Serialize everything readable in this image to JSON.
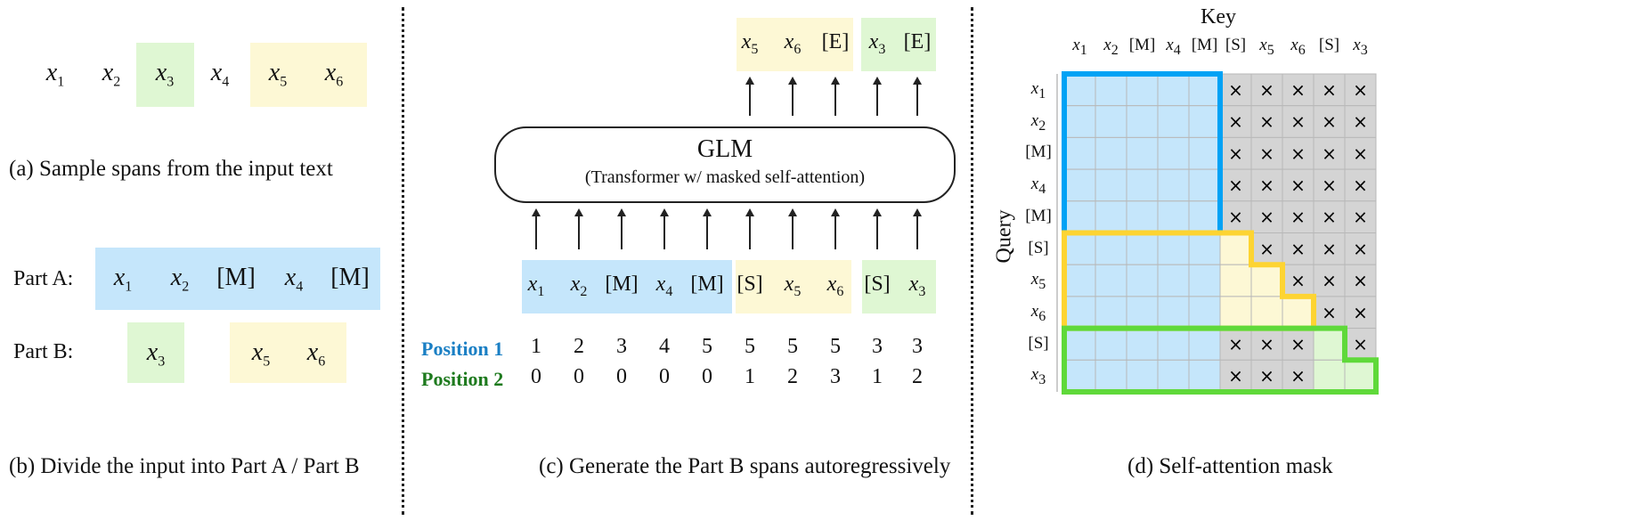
{
  "panel_a": {
    "tokens": [
      "x1",
      "x2",
      "x3",
      "x4",
      "x5",
      "x6"
    ],
    "caption": "(a)  Sample spans from the input text"
  },
  "panel_b": {
    "part_a_label": "Part A:",
    "part_a_tokens": [
      "x1",
      "x2",
      "[M]",
      "x4",
      "[M]"
    ],
    "part_b_label": "Part B:",
    "part_b_tokens": [
      "x3",
      "x5",
      "x6"
    ],
    "caption": "(b)  Divide the input into Part A / Part B"
  },
  "panel_c": {
    "outputs": [
      "x5",
      "x6",
      "[E]",
      "x3",
      "[E]"
    ],
    "model_title": "GLM",
    "model_subtitle": "(Transformer w/ masked self-attention)",
    "inputs": [
      "x1",
      "x2",
      "[M]",
      "x4",
      "[M]",
      "[S]",
      "x5",
      "x6",
      "[S]",
      "x3"
    ],
    "position1_label": "Position 1",
    "position1": [
      "1",
      "2",
      "3",
      "4",
      "5",
      "5",
      "5",
      "5",
      "3",
      "3"
    ],
    "position2_label": "Position 2",
    "position2": [
      "0",
      "0",
      "0",
      "0",
      "0",
      "1",
      "2",
      "3",
      "1",
      "2"
    ],
    "caption": "(c)  Generate the Part B spans autoregressively"
  },
  "panel_d": {
    "key_label": "Key",
    "query_label": "Query",
    "keys": [
      "x1",
      "x2",
      "[M]",
      "x4",
      "[M]",
      "[S]",
      "x5",
      "x6",
      "[S]",
      "x3"
    ],
    "queries": [
      "x1",
      "x2",
      "[M]",
      "x4",
      "[M]",
      "[S]",
      "x5",
      "x6",
      "[S]",
      "x3"
    ],
    "mask_symbol": "×",
    "caption": "(d)  Self-attention mask"
  },
  "colors": {
    "part_a": "#c5e6fb",
    "span1": "#fdf8d5",
    "span2": "#dff7d3",
    "masked": "#d4d4d4",
    "border_a": "#00a2f5",
    "border_span1": "#fdd432",
    "border_span2": "#5fd93a",
    "position1": "#1a7fc4",
    "position2": "#1e7a1e"
  }
}
